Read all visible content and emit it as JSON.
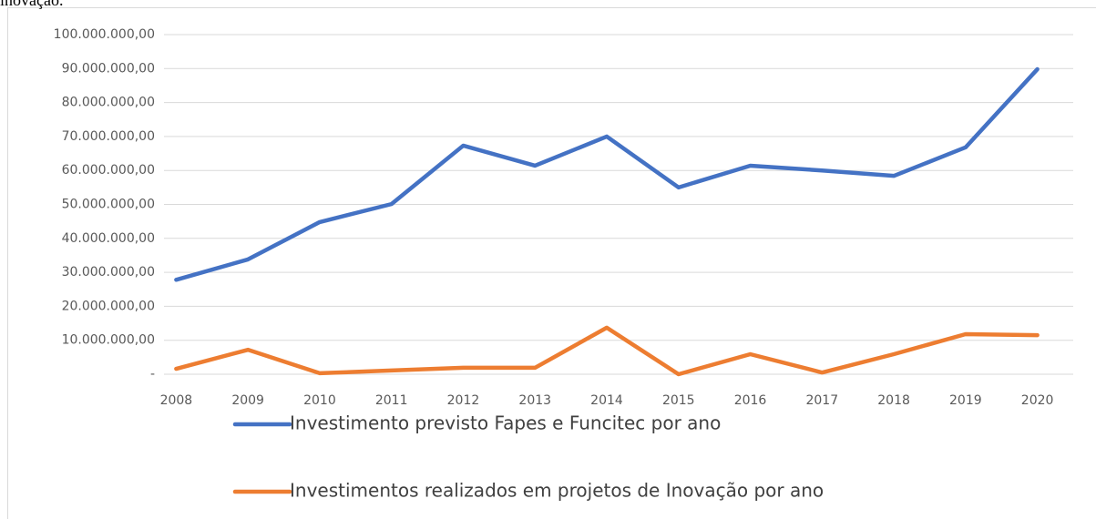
{
  "caption": "inovação.",
  "chart_data": {
    "type": "line",
    "categories": [
      "2008",
      "2009",
      "2010",
      "2011",
      "2012",
      "2013",
      "2014",
      "2015",
      "2016",
      "2017",
      "2018",
      "2019",
      "2020"
    ],
    "series": [
      {
        "name": "Investimento previsto Fapes e Funcitec por ano",
        "color": "#4472c4",
        "values": [
          27800000,
          33800000,
          44800000,
          50100000,
          67300000,
          61400000,
          70000000,
          55000000,
          61400000,
          60000000,
          58400000,
          66800000,
          89800000
        ]
      },
      {
        "name": "Investimentos realizados em projetos de Inovação por ano",
        "color": "#ed7d31",
        "values": [
          1600000,
          7200000,
          300000,
          1100000,
          1900000,
          1900000,
          13700000,
          0,
          5900000,
          500000,
          5900000,
          11800000,
          11500000
        ]
      }
    ],
    "ylim": [
      0,
      100000000
    ],
    "yticks": [
      {
        "value": 0,
        "label": "-"
      },
      {
        "value": 10000000,
        "label": "10.000.000,00"
      },
      {
        "value": 20000000,
        "label": "20.000.000,00"
      },
      {
        "value": 30000000,
        "label": "30.000.000,00"
      },
      {
        "value": 40000000,
        "label": "40.000.000,00"
      },
      {
        "value": 50000000,
        "label": "50.000.000,00"
      },
      {
        "value": 60000000,
        "label": "60.000.000,00"
      },
      {
        "value": 70000000,
        "label": "70.000.000,00"
      },
      {
        "value": 80000000,
        "label": "80.000.000,00"
      },
      {
        "value": 90000000,
        "label": "90.000.000,00"
      },
      {
        "value": 100000000,
        "label": "100.000.000,00"
      }
    ],
    "grid": true,
    "legend": "bottom"
  }
}
